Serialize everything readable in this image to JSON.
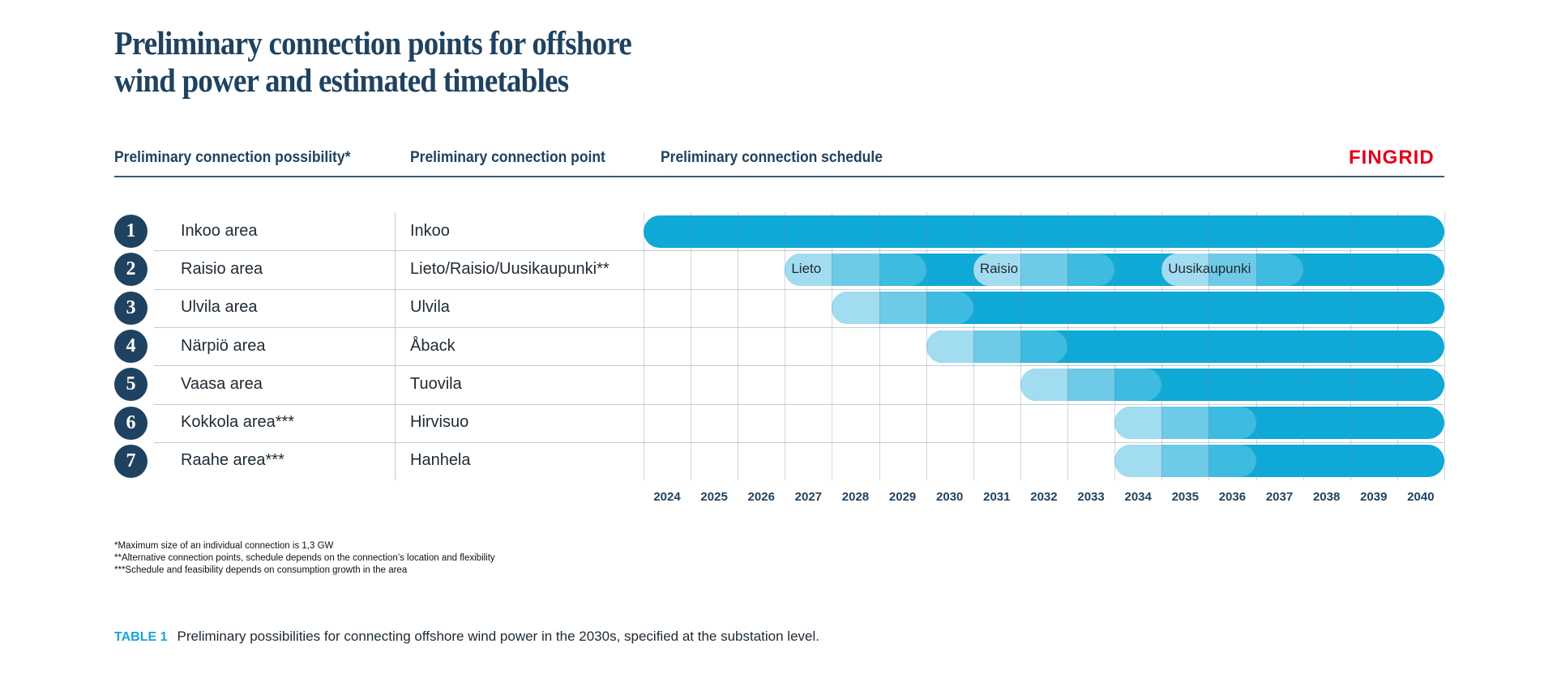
{
  "title": {
    "line1": "Preliminary connection points for offshore",
    "line2": "wind power and estimated timetables"
  },
  "headers": {
    "possibility": "Preliminary connection possibility*",
    "point": "Preliminary connection point",
    "schedule": "Preliminary connection schedule"
  },
  "logo": "FINGRID",
  "colors": {
    "navy": "#1f4260",
    "brand_red": "#e3001b",
    "bar_dark": "#0ea9d6",
    "bar_stage3": "#3dbbe0",
    "bar_stage2": "#6ecae6",
    "bar_stage1": "#a2dcf0"
  },
  "years": [
    "2024",
    "2025",
    "2026",
    "2027",
    "2028",
    "2029",
    "2030",
    "2031",
    "2032",
    "2033",
    "2034",
    "2035",
    "2036",
    "2037",
    "2038",
    "2039",
    "2040"
  ],
  "rows": [
    {
      "num": "1",
      "area": "Inkoo area",
      "point": "Inkoo",
      "stages": [
        {
          "label": "",
          "start": 2024,
          "ramp": false
        }
      ]
    },
    {
      "num": "2",
      "area": "Raisio area",
      "point": "Lieto/Raisio/Uusikaupunki**",
      "stages": [
        {
          "label": "Lieto",
          "start": 2027,
          "ramp": true
        },
        {
          "label": "Raisio",
          "start": 2031,
          "ramp": true
        },
        {
          "label": "Uusikaupunki",
          "start": 2035,
          "ramp": true
        }
      ]
    },
    {
      "num": "3",
      "area": "Ulvila area",
      "point": "Ulvila",
      "stages": [
        {
          "label": "",
          "start": 2028,
          "ramp": true
        }
      ]
    },
    {
      "num": "4",
      "area": "Närpiö area",
      "point": "Åback",
      "stages": [
        {
          "label": "",
          "start": 2030,
          "ramp": true
        }
      ]
    },
    {
      "num": "5",
      "area": "Vaasa area",
      "point": "Tuovila",
      "stages": [
        {
          "label": "",
          "start": 2032,
          "ramp": true
        }
      ]
    },
    {
      "num": "6",
      "area": "Kokkola area***",
      "point": "Hirvisuo",
      "stages": [
        {
          "label": "",
          "start": 2034,
          "ramp": true
        }
      ]
    },
    {
      "num": "7",
      "area": "Raahe area***",
      "point": "Hanhela",
      "stages": [
        {
          "label": "",
          "start": 2034,
          "ramp": true
        }
      ]
    }
  ],
  "footnotes": [
    "*Maximum size of an individual connection is 1,3 GW",
    "**Alternative connection points, schedule depends on the connection’s location and flexibility",
    "***Schedule and feasibility depends on consumption growth in the area"
  ],
  "caption": {
    "label": "TABLE 1",
    "text": "Preliminary possibilities for connecting offshore wind power in the 2030s, specified at the substation level."
  }
}
